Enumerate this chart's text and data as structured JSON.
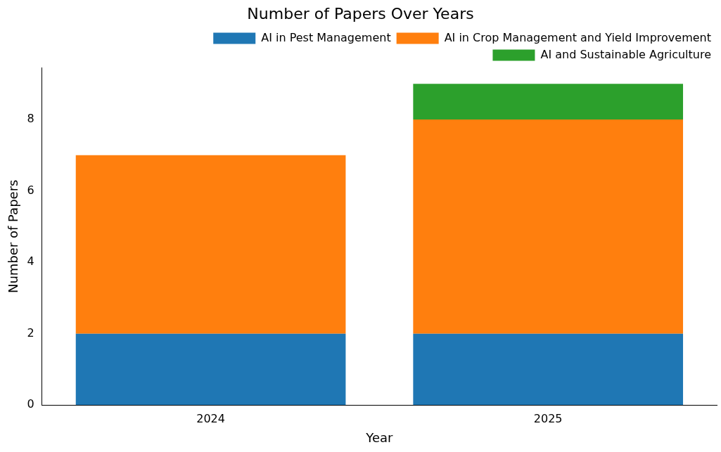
{
  "chart_data": {
    "type": "bar",
    "title": "Number of Papers Over Years",
    "xlabel": "Year",
    "ylabel": "Number of Papers",
    "categories": [
      "2024",
      "2025"
    ],
    "stacked": true,
    "series": [
      {
        "name": "AI in Pest Management",
        "color": "#1f77b4",
        "values": [
          2,
          2
        ]
      },
      {
        "name": "AI in Crop Management and Yield Improvement",
        "color": "#ff7f0e",
        "values": [
          5,
          6
        ]
      },
      {
        "name": "AI and Sustainable Agriculture",
        "color": "#2ca02c",
        "values": [
          0,
          1
        ]
      }
    ],
    "ylim": [
      0,
      9.45
    ],
    "yticks": [
      0,
      2,
      4,
      6,
      8
    ],
    "grid": false,
    "legend": "top right"
  }
}
